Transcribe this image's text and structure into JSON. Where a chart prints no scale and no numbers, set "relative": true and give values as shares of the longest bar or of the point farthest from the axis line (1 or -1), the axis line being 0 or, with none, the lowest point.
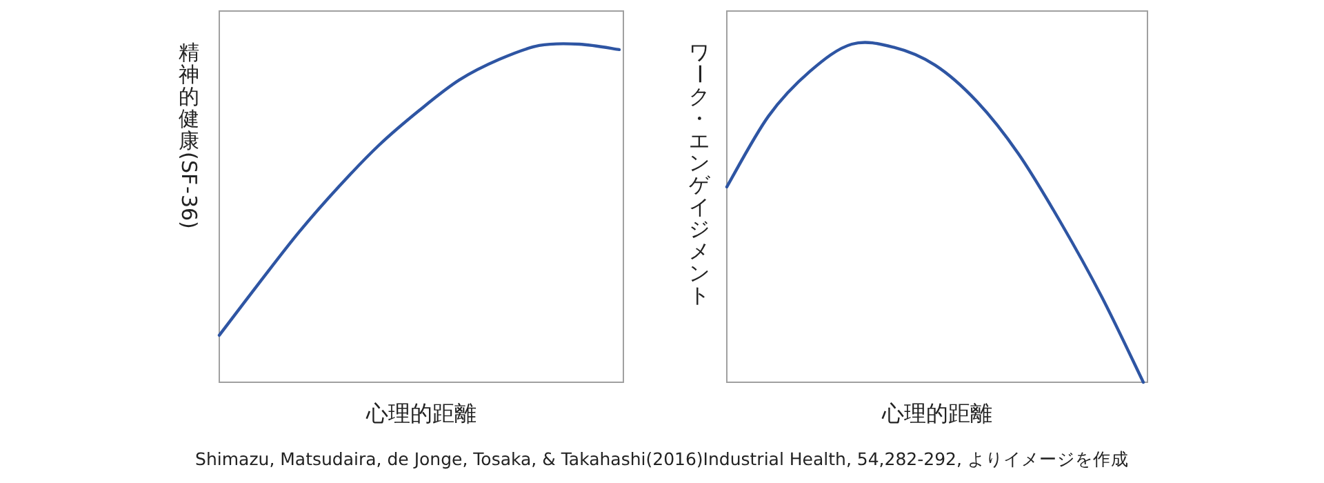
{
  "chart_data": [
    {
      "type": "line",
      "relative": true,
      "ylabel": "精神的健康(SF-36)",
      "xlabel": "心理的距離",
      "categories": [
        null,
        null,
        null,
        null,
        null,
        null,
        null,
        null,
        null,
        null,
        null
      ],
      "series": [
        {
          "color": "#2e55a3",
          "values": [
            0.139,
            0.294,
            0.445,
            0.58,
            0.702,
            0.804,
            0.894,
            0.955,
            0.996,
            1.0,
            0.984
          ]
        }
      ]
    },
    {
      "type": "line",
      "relative": true,
      "ylabel": "ワーク・エンゲイジメント",
      "xlabel": "心理的距離",
      "categories": [
        null,
        null,
        null,
        null,
        null,
        null,
        null,
        null,
        null,
        null,
        null
      ],
      "series": [
        {
          "color": "#2e55a3",
          "values": [
            0.578,
            0.787,
            0.92,
            1.0,
            0.991,
            0.938,
            0.831,
            0.676,
            0.476,
            0.253,
            0
          ]
        }
      ],
      "annotations": [
        "Shimazu, Matsudaira, de Jonge, Tosaka, & Takahashi(2016)Industrial Health, 54,282-292, よりイメージを作成"
      ]
    }
  ]
}
